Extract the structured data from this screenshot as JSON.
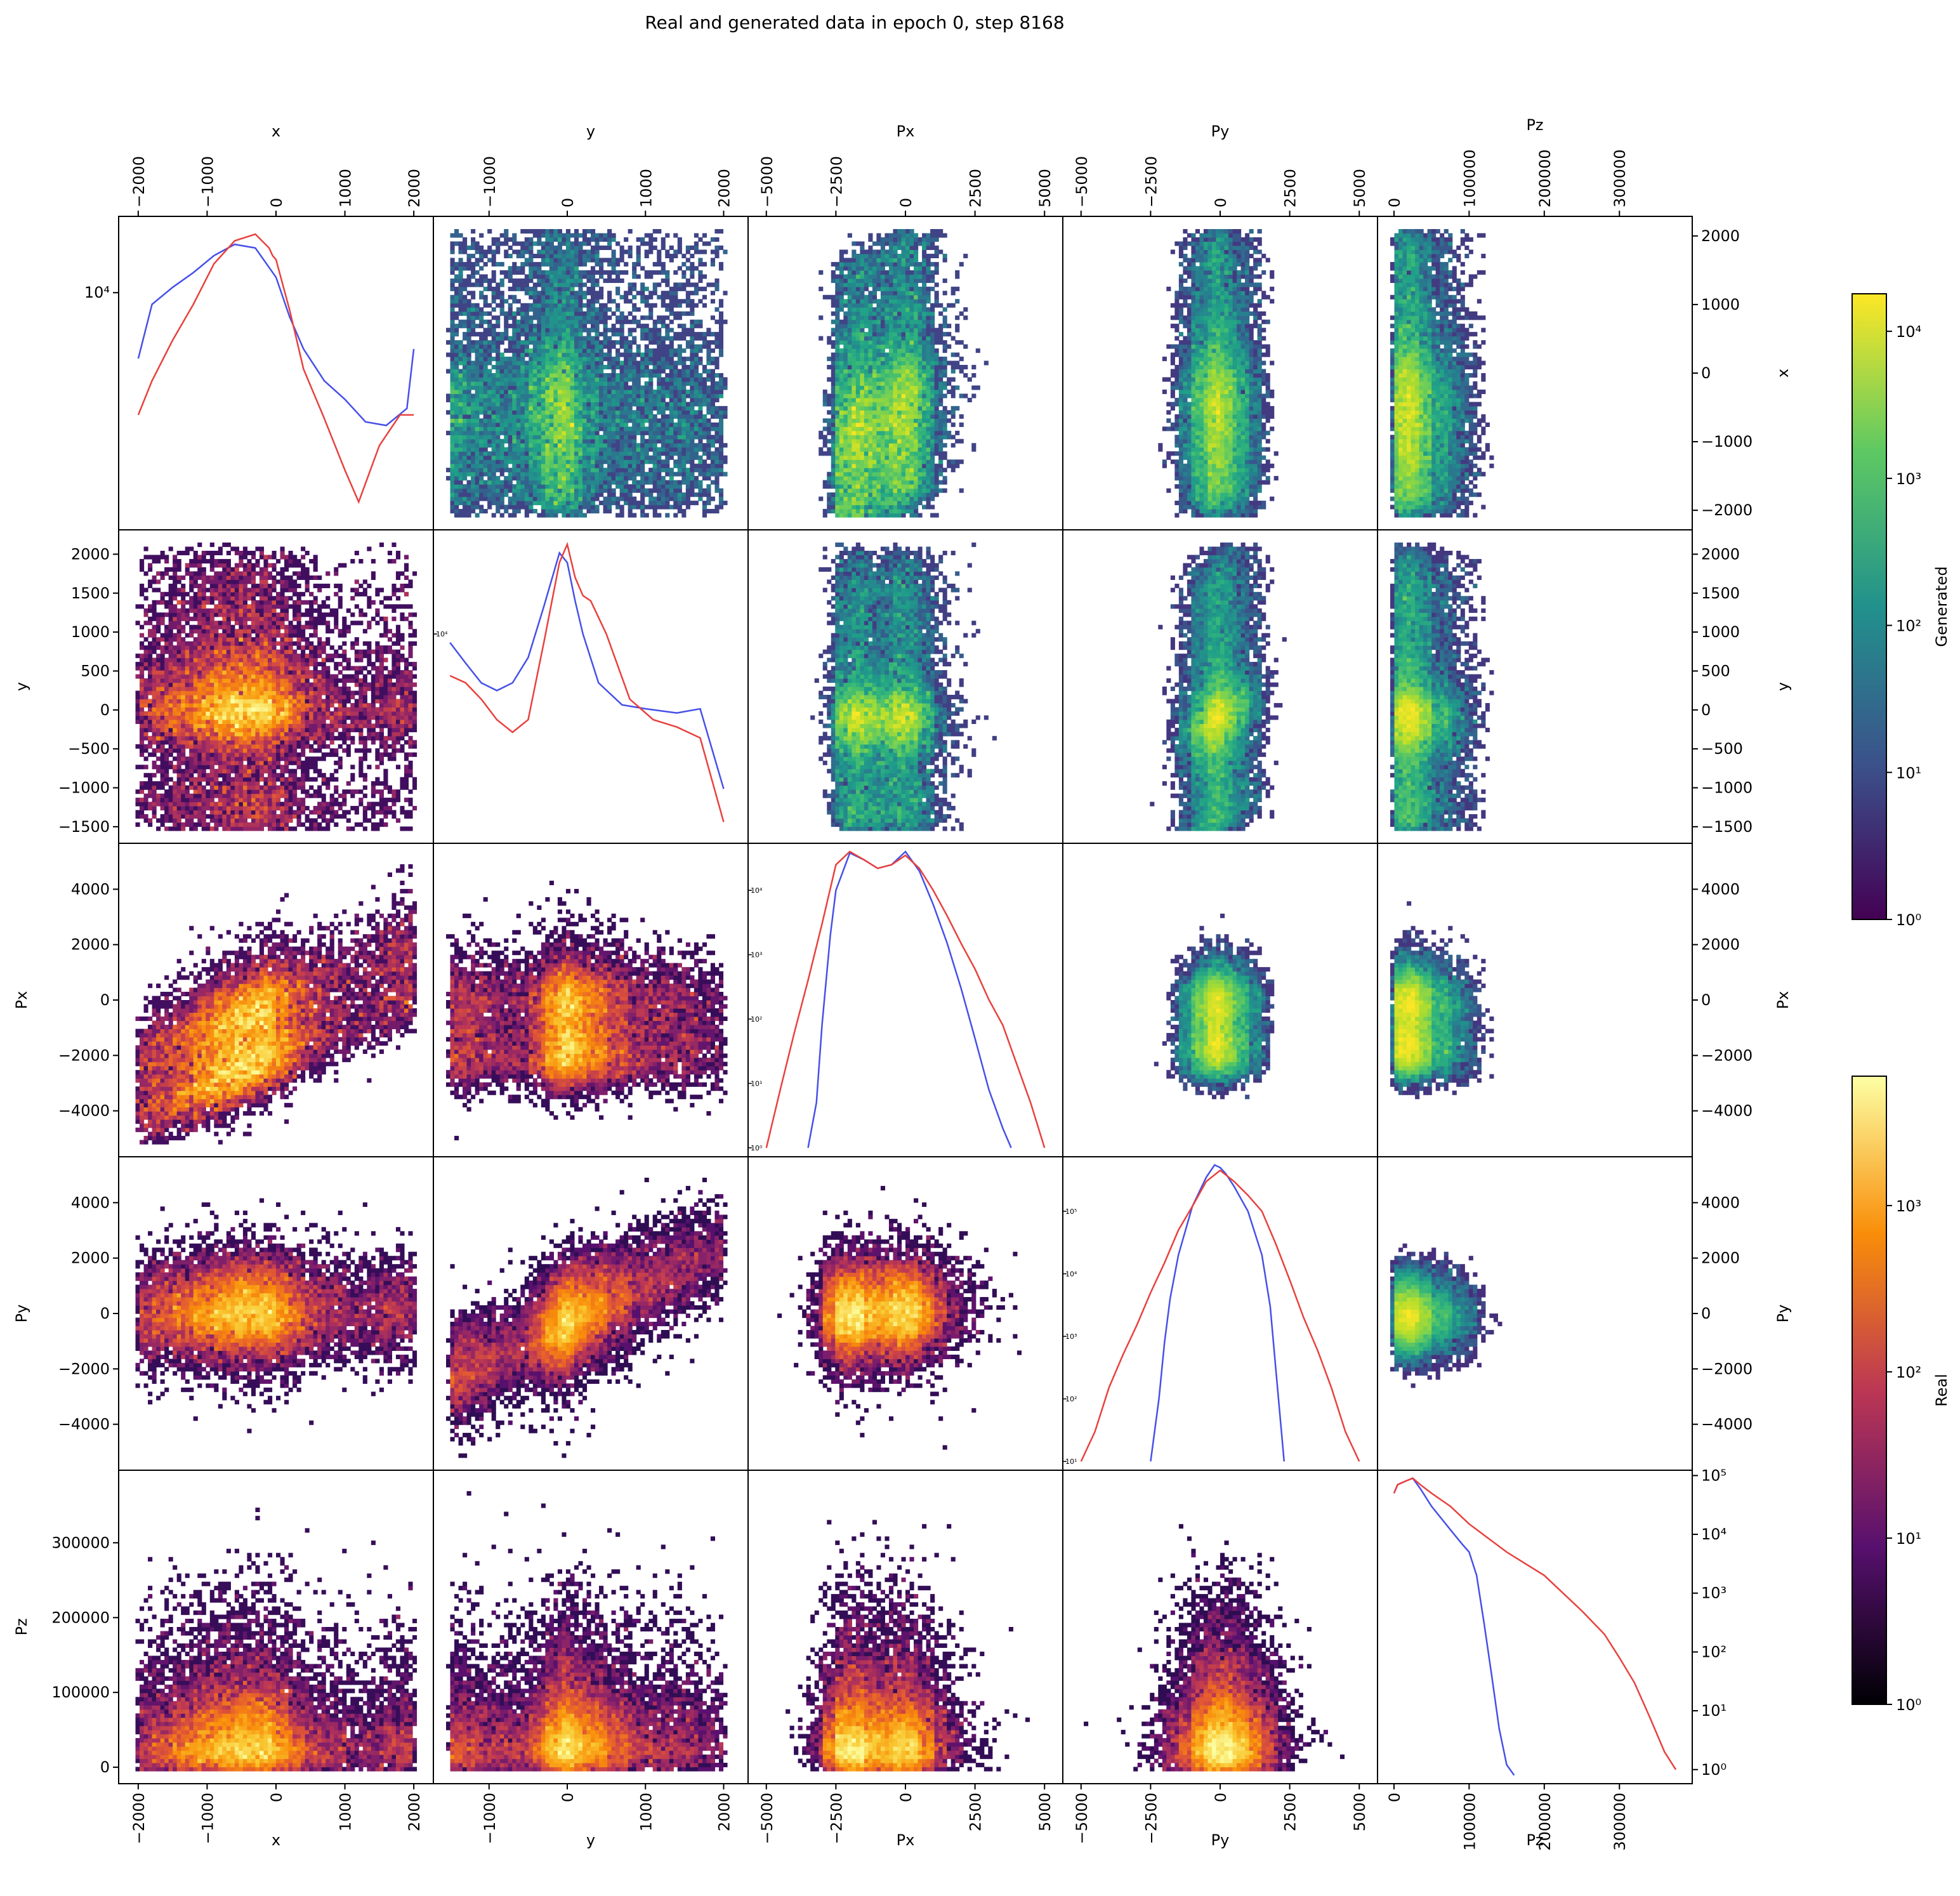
{
  "figure": {
    "title": "Real and generated data in epoch 0, step 8168",
    "variables": [
      "x",
      "y",
      "Px",
      "Py",
      "Pz"
    ]
  },
  "colorbars": {
    "generated": {
      "label": "Generated",
      "colormap": "viridis",
      "ticks": [
        "10⁰",
        "10¹",
        "10²",
        "10³",
        "10⁴"
      ],
      "range": [
        1,
        18000
      ]
    },
    "real": {
      "label": "Real",
      "colormap": "inferno",
      "ticks": [
        "10⁰",
        "10¹",
        "10²",
        "10³"
      ],
      "range": [
        1,
        6000
      ]
    }
  },
  "colors": {
    "real_hist": "#e8413e",
    "generated_hist": "#4650e8"
  },
  "chart_data": {
    "type": "heatmap",
    "title": "Real and generated data in epoch 0, step 8168",
    "layout": "corner plot: upper triangle = generated (viridis, log), lower triangle = real (inferno, log), diagonal = 1D histograms (red real, blue generated, log y)",
    "axes": {
      "x": {
        "range": [
          -2100,
          2100
        ],
        "ticks": [
          -2000,
          -1000,
          0,
          1000,
          2000
        ],
        "tick_labels": [
          "−2000",
          "−1000",
          "0",
          "1000",
          "2000"
        ]
      },
      "y": {
        "range": [
          -1550,
          2150
        ],
        "ticks": [
          -1000,
          0,
          1000,
          2000
        ],
        "tick_labels": [
          "−1000",
          "0",
          "1000",
          "2000"
        ],
        "left_ticks": [
          -1500,
          -1000,
          -500,
          0,
          500,
          1000,
          1500,
          2000
        ],
        "left_tick_labels": [
          "−1500",
          "−1000",
          "−500",
          "0",
          "500",
          "1000",
          "1500",
          "2000"
        ]
      },
      "Px": {
        "range": [
          -5200,
          5200
        ],
        "ticks": [
          -5000,
          -2500,
          0,
          2500,
          5000
        ],
        "tick_labels": [
          "−5000",
          "−2500",
          "0",
          "2500",
          "5000"
        ],
        "left_ticks": [
          -4000,
          -2000,
          0,
          2000,
          4000
        ],
        "left_tick_labels": [
          "−4000",
          "−2000",
          "0",
          "2000",
          "4000"
        ]
      },
      "Py": {
        "range": [
          -5200,
          5200
        ],
        "ticks": [
          -5000,
          -2500,
          0,
          2500,
          5000
        ],
        "tick_labels": [
          "−5000",
          "−2500",
          "0",
          "2500",
          "5000"
        ],
        "left_ticks": [
          -4000,
          -2000,
          0,
          2000,
          4000
        ],
        "left_tick_labels": [
          "−4000",
          "−2000",
          "0",
          "2000",
          "4000"
        ]
      },
      "Pz": {
        "range": [
          -5000,
          380000
        ],
        "ticks": [
          0,
          100000,
          200000,
          300000
        ],
        "tick_labels": [
          "0",
          "100000",
          "200000",
          "300000"
        ],
        "left_ticks": [
          0,
          100000,
          200000,
          300000
        ],
        "left_tick_labels": [
          "0",
          "100000",
          "200000",
          "300000"
        ]
      }
    },
    "diagonal_histograms": [
      {
        "variable": "x",
        "y_tick_labels": [
          "10⁴"
        ],
        "real": {
          "x": [
            -2000,
            -1800,
            -1500,
            -1200,
            -900,
            -600,
            -300,
            -100,
            -50,
            0,
            200,
            400,
            700,
            1000,
            1200,
            1500,
            1800,
            2000
          ],
          "y": [
            3300,
            4500,
            6500,
            9000,
            13000,
            16000,
            17000,
            15000,
            14000,
            13500,
            8500,
            5000,
            3200,
            2000,
            1500,
            2500,
            3300,
            3300
          ]
        },
        "generated": {
          "x": [
            -2000,
            -1800,
            -1500,
            -1200,
            -900,
            -600,
            -300,
            0,
            200,
            400,
            700,
            1000,
            1300,
            1600,
            1900,
            2000
          ],
          "y": [
            5500,
            9000,
            10500,
            12000,
            14000,
            15500,
            15000,
            11500,
            8000,
            6000,
            4500,
            3800,
            3100,
            3000,
            3500,
            6000
          ]
        }
      },
      {
        "variable": "y",
        "y_tick_labels": [
          "10⁴"
        ],
        "real": {
          "x": [
            -1500,
            -1300,
            -1100,
            -900,
            -700,
            -500,
            -300,
            -100,
            0,
            100,
            200,
            300,
            500,
            800,
            1100,
            1400,
            1700,
            2000
          ],
          "y": [
            6000,
            5500,
            4500,
            3500,
            3000,
            3500,
            9000,
            24000,
            30000,
            20000,
            16000,
            15000,
            10000,
            4500,
            3500,
            3200,
            2800,
            1000
          ]
        },
        "generated": {
          "x": [
            -1500,
            -1300,
            -1100,
            -900,
            -700,
            -500,
            -300,
            -100,
            0,
            100,
            200,
            400,
            700,
            1000,
            1400,
            1700,
            2000
          ],
          "y": [
            9000,
            7000,
            5500,
            5000,
            5500,
            7500,
            14000,
            27000,
            24000,
            15000,
            10000,
            5500,
            4200,
            4000,
            3800,
            4000,
            1500
          ]
        }
      },
      {
        "variable": "Px",
        "y_tick_labels": [
          "10⁰",
          "10¹",
          "10²",
          "10³",
          "10⁴"
        ],
        "real": {
          "x": [
            -5000,
            -4500,
            -4000,
            -3500,
            -3000,
            -2500,
            -2000,
            -1500,
            -1000,
            -500,
            0,
            500,
            1000,
            1500,
            2000,
            2500,
            3000,
            3500,
            4000,
            4500,
            5000
          ],
          "y": [
            1,
            8,
            60,
            400,
            3000,
            25000,
            40000,
            30000,
            22000,
            25000,
            35000,
            22000,
            10000,
            4000,
            1500,
            600,
            200,
            80,
            20,
            5,
            1
          ]
        },
        "generated": {
          "x": [
            -3500,
            -3200,
            -3000,
            -2700,
            -2500,
            -2000,
            -1500,
            -1000,
            -500,
            0,
            500,
            1000,
            1500,
            2000,
            2500,
            3000,
            3500,
            3800
          ],
          "y": [
            1,
            5,
            80,
            2000,
            10000,
            38000,
            30000,
            22000,
            25000,
            40000,
            20000,
            6000,
            1500,
            300,
            50,
            8,
            2,
            1
          ]
        }
      },
      {
        "variable": "Py",
        "y_tick_labels": [
          "10¹",
          "10²",
          "10³",
          "10⁴",
          "10⁵"
        ],
        "real": {
          "x": [
            -5000,
            -4500,
            -4000,
            -3500,
            -3000,
            -2500,
            -2000,
            -1500,
            -1000,
            -500,
            0,
            500,
            1000,
            1500,
            2000,
            2500,
            3000,
            3500,
            4000,
            4500,
            5000
          ],
          "y": [
            1,
            3,
            15,
            50,
            150,
            500,
            1500,
            5000,
            12000,
            30000,
            45000,
            30000,
            18000,
            10000,
            3000,
            800,
            200,
            60,
            15,
            3,
            1
          ]
        },
        "generated": {
          "x": [
            -2500,
            -2200,
            -2000,
            -1800,
            -1500,
            -1000,
            -500,
            -200,
            0,
            200,
            500,
            1000,
            1500,
            1800,
            2000,
            2300
          ],
          "y": [
            1,
            10,
            80,
            400,
            2000,
            12000,
            35000,
            55000,
            50000,
            40000,
            25000,
            10000,
            2000,
            300,
            30,
            1
          ]
        }
      },
      {
        "variable": "Pz",
        "y_tick_labels": [
          "10⁰",
          "10¹",
          "10²",
          "10³",
          "10⁴",
          "10⁵"
        ],
        "real": {
          "x": [
            0,
            5000,
            15000,
            25000,
            35000,
            50000,
            75000,
            100000,
            150000,
            200000,
            250000,
            280000,
            300000,
            320000,
            340000,
            360000,
            375000
          ],
          "y": [
            50000,
            70000,
            80000,
            90000,
            70000,
            50000,
            30000,
            15000,
            5000,
            2000,
            500,
            200,
            80,
            30,
            8,
            2,
            1
          ]
        },
        "generated": {
          "x": [
            0,
            5000,
            15000,
            25000,
            35000,
            50000,
            75000,
            90000,
            100000,
            110000,
            120000,
            130000,
            140000,
            150000,
            160000
          ],
          "y": [
            50000,
            70000,
            80000,
            90000,
            60000,
            30000,
            12000,
            7000,
            5000,
            2000,
            300,
            40,
            5,
            1.2,
            0.8
          ]
        }
      }
    ],
    "color_scale": "log"
  }
}
